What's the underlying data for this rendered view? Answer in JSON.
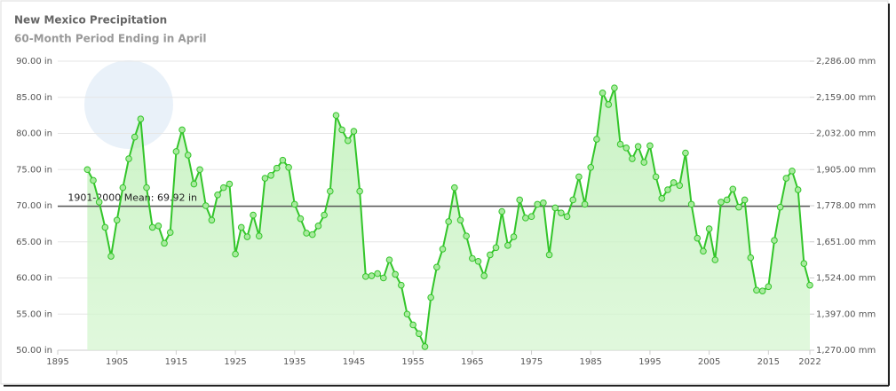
{
  "chart_data": {
    "type": "area-line",
    "title": "New Mexico Precipitation",
    "subtitle": "60-Month Period Ending in April",
    "x": [
      1900,
      1901,
      1902,
      1903,
      1904,
      1905,
      1906,
      1907,
      1908,
      1909,
      1910,
      1911,
      1912,
      1913,
      1914,
      1915,
      1916,
      1917,
      1918,
      1919,
      1920,
      1921,
      1922,
      1923,
      1924,
      1925,
      1926,
      1927,
      1928,
      1929,
      1930,
      1931,
      1932,
      1933,
      1934,
      1935,
      1936,
      1937,
      1938,
      1939,
      1940,
      1941,
      1942,
      1943,
      1944,
      1945,
      1946,
      1947,
      1948,
      1949,
      1950,
      1951,
      1952,
      1953,
      1954,
      1955,
      1956,
      1957,
      1958,
      1959,
      1960,
      1961,
      1962,
      1963,
      1964,
      1965,
      1966,
      1967,
      1968,
      1969,
      1970,
      1971,
      1972,
      1973,
      1974,
      1975,
      1976,
      1977,
      1978,
      1979,
      1980,
      1981,
      1982,
      1983,
      1984,
      1985,
      1986,
      1987,
      1988,
      1989,
      1990,
      1991,
      1992,
      1993,
      1994,
      1995,
      1996,
      1997,
      1998,
      1999,
      2000,
      2001,
      2002,
      2003,
      2004,
      2005,
      2006,
      2007,
      2008,
      2009,
      2010,
      2011,
      2012,
      2013,
      2014,
      2015,
      2016,
      2017,
      2018,
      2019,
      2020,
      2021,
      2022
    ],
    "series": [
      {
        "name": "Precipitation",
        "color": "#33c52a",
        "values": [
          75.0,
          73.5,
          70.5,
          67.0,
          63.0,
          68.0,
          72.5,
          76.5,
          79.5,
          82.0,
          72.5,
          67.0,
          67.2,
          64.8,
          66.3,
          77.5,
          80.5,
          77.0,
          73.0,
          75.0,
          70.0,
          68.0,
          71.5,
          72.5,
          73.0,
          63.3,
          67.0,
          65.7,
          68.7,
          65.8,
          73.8,
          74.2,
          75.2,
          76.3,
          75.3,
          70.2,
          68.2,
          66.2,
          66.0,
          67.2,
          68.7,
          72.0,
          82.5,
          80.5,
          79.0,
          80.3,
          72.0,
          60.2,
          60.3,
          60.6,
          60.0,
          62.5,
          60.5,
          59.0,
          55.0,
          53.5,
          52.3,
          50.5,
          57.3,
          61.5,
          64.0,
          67.8,
          72.5,
          68.0,
          65.8,
          62.7,
          62.3,
          60.3,
          63.2,
          64.2,
          69.2,
          64.5,
          65.7,
          70.8,
          68.3,
          68.5,
          70.2,
          70.4,
          63.2,
          69.7,
          69.0,
          68.5,
          70.8,
          74.0,
          70.2,
          75.3,
          79.2,
          85.6,
          84.0,
          86.3,
          78.5,
          78.0,
          76.5,
          78.2,
          76.0,
          78.3,
          74.0,
          71.0,
          72.2,
          73.2,
          72.8,
          77.3,
          70.2,
          65.5,
          63.7,
          66.8,
          62.5,
          70.5,
          70.8,
          72.3,
          69.8,
          70.8,
          62.8,
          58.3,
          58.2,
          58.8,
          65.2,
          69.8,
          73.8,
          74.8,
          72.2,
          62.0,
          59.0
        ]
      }
    ],
    "mean": {
      "value": 69.92,
      "label": "1901-2000 Mean: 69.92 in"
    },
    "xlim": [
      1895,
      2022
    ],
    "xticks": [
      1895,
      1905,
      1915,
      1925,
      1935,
      1945,
      1955,
      1965,
      1975,
      1985,
      1995,
      2005,
      2015,
      2022
    ],
    "ylim": [
      50,
      90
    ],
    "yticks": [
      {
        "value": 50,
        "label": "50.00 in"
      },
      {
        "value": 55,
        "label": "55.00 in"
      },
      {
        "value": 60,
        "label": "60.00 in"
      },
      {
        "value": 65,
        "label": "65.00 in"
      },
      {
        "value": 70,
        "label": "70.00 in"
      },
      {
        "value": 75,
        "label": "75.00 in"
      },
      {
        "value": 80,
        "label": "80.00 in"
      },
      {
        "value": 85,
        "label": "85.00 in"
      },
      {
        "value": 90,
        "label": "90.00 in"
      }
    ],
    "y2lim": [
      1270,
      2286
    ],
    "y2ticks": [
      {
        "value": 1270,
        "label": "1,270.00 mm"
      },
      {
        "value": 1397,
        "label": "1,397.00 mm"
      },
      {
        "value": 1524,
        "label": "1,524.00 mm"
      },
      {
        "value": 1651,
        "label": "1,651.00 mm"
      },
      {
        "value": 1778,
        "label": "1,778.00 mm"
      },
      {
        "value": 1905,
        "label": "1,905.00 mm"
      },
      {
        "value": 2032,
        "label": "2,032.00 mm"
      },
      {
        "value": 2159,
        "label": "2,159.00 mm"
      },
      {
        "value": 2286,
        "label": "2,286.00 mm"
      }
    ],
    "grid": true
  }
}
